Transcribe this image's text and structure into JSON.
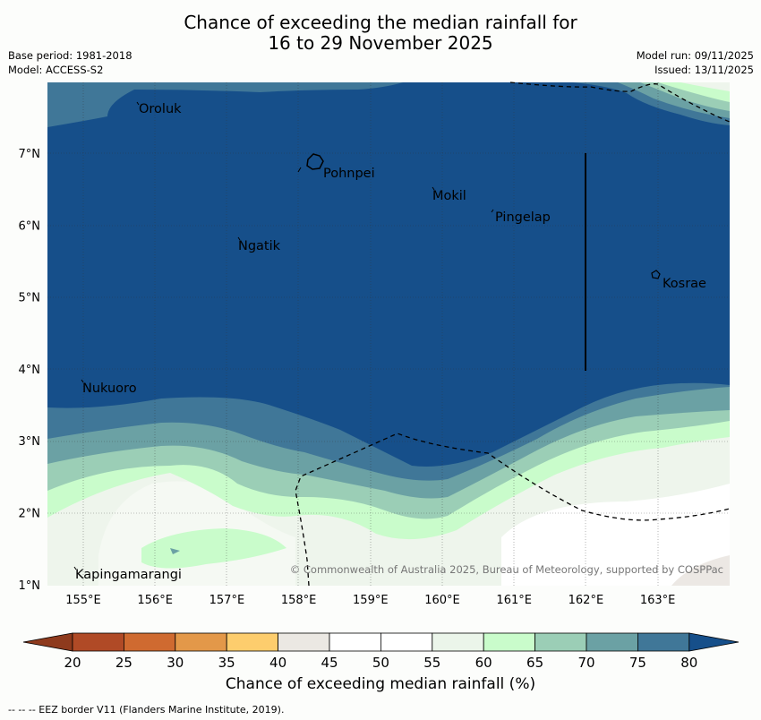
{
  "title": {
    "line1": "Chance of exceeding the median rainfall for",
    "line2": "16 to 29 November 2025"
  },
  "meta": {
    "base_period": "Base period: 1981-2018",
    "model": "Model: ACCESS-S2",
    "model_run": "Model run: 09/11/2025",
    "issued": "Issued: 13/11/2025"
  },
  "map": {
    "lon_ticks": [
      "155°E",
      "156°E",
      "157°E",
      "158°E",
      "159°E",
      "160°E",
      "161°E",
      "162°E",
      "163°E"
    ],
    "lat_ticks": [
      "7°N",
      "6°N",
      "5°N",
      "4°N",
      "3°N",
      "2°N",
      "1°N"
    ],
    "places": [
      "Oroluk",
      "Pohnpei",
      "Mokil",
      "Pingelap",
      "Ngatik",
      "Kosrae",
      "Nukuoro",
      "Kapingamarangi"
    ],
    "copyright": "© Commonwealth of Australia 2025, Bureau of Meteorology, supported by COSPPac"
  },
  "colorbar": {
    "title": "Chance of exceeding median rainfall (%)",
    "ticks": [
      "20",
      "25",
      "30",
      "35",
      "40",
      "45",
      "50",
      "55",
      "60",
      "65",
      "70",
      "75",
      "80"
    ],
    "colors": [
      "#b04a26",
      "#cf6a30",
      "#e39849",
      "#fdcd6d",
      "#ebe8e3",
      "#ffffff",
      "#ffffff",
      "#ebf5ea",
      "#c9fccb",
      "#9bceb6",
      "#6ba1a4",
      "#407798",
      "#164f8a"
    ],
    "under_color": "#8e3a1d",
    "over_color": "#164f8a"
  },
  "footer": {
    "eez_note": "--  --  -- EEZ border V11 (Flanders Marine Institute, 2019)."
  }
}
